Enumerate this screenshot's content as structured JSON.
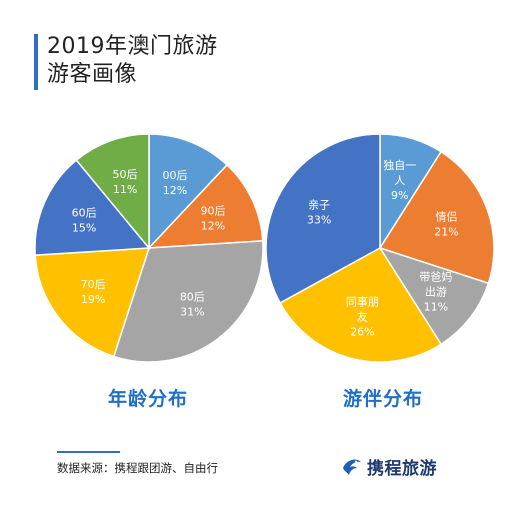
{
  "title": {
    "line1": "2019年澳门旅游",
    "line2": "游客画像"
  },
  "chart_data": [
    {
      "type": "pie",
      "title": "年龄分布",
      "slices": [
        {
          "label": "00后",
          "value": 12,
          "display": "12%",
          "color": "#5a9bd5"
        },
        {
          "label": "90后",
          "value": 12,
          "display": "12%",
          "color": "#ed7d31"
        },
        {
          "label": "80后",
          "value": 31,
          "display": "31%",
          "color": "#a5a5a5"
        },
        {
          "label": "70后",
          "value": 19,
          "display": "19%",
          "color": "#ffc000"
        },
        {
          "label": "60后",
          "value": 15,
          "display": "15%",
          "color": "#4472c4"
        },
        {
          "label": "50后",
          "value": 11,
          "display": "11%",
          "color": "#70ad47"
        }
      ]
    },
    {
      "type": "pie",
      "title": "游伴分布",
      "slices": [
        {
          "label": "独自一人",
          "value": 9,
          "display": "9%",
          "color": "#5a9bd5"
        },
        {
          "label": "情侣",
          "value": 21,
          "display": "21%",
          "color": "#ed7d31"
        },
        {
          "label": "带爸妈出游",
          "value": 11,
          "display": "11%",
          "color": "#a5a5a5"
        },
        {
          "label": "同事朋友",
          "value": 26,
          "display": "26%",
          "color": "#ffc000"
        },
        {
          "label": "亲子",
          "value": 33,
          "display": "33%",
          "color": "#4472c4"
        }
      ]
    }
  ],
  "footer": {
    "source": "数据来源：携程跟团游、自由行",
    "logo_text": "携程旅游"
  }
}
